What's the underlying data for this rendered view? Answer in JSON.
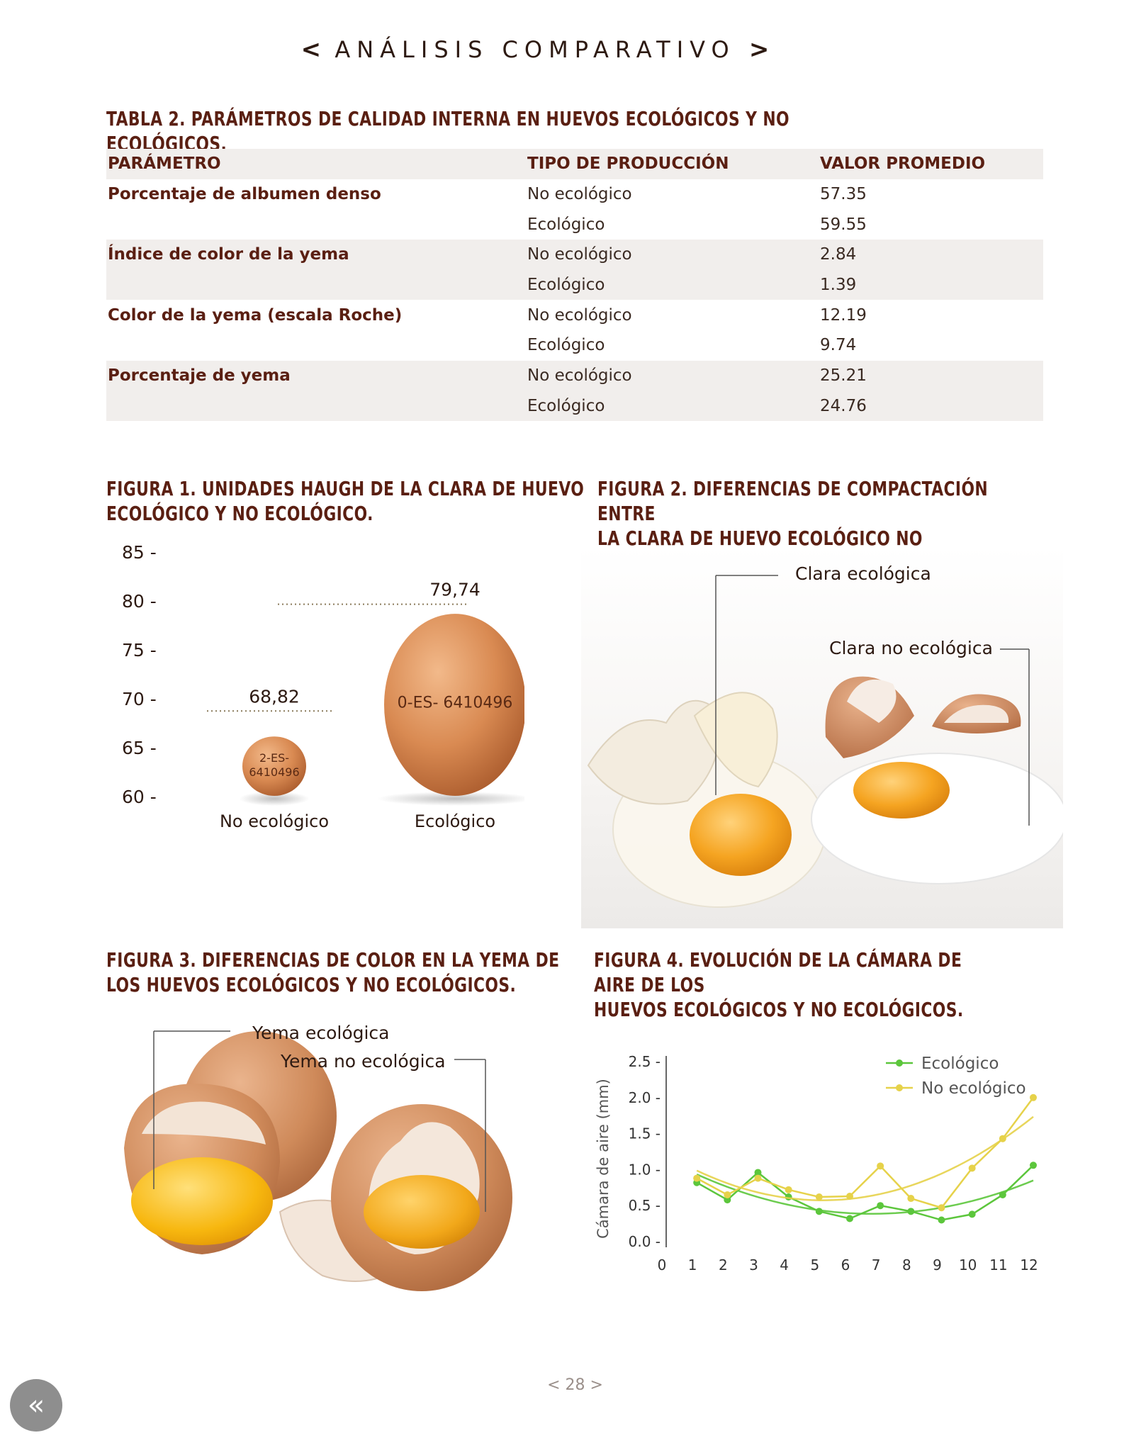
{
  "header": {
    "left_chevron": "<",
    "title": "ANÁLISIS COMPARATIVO",
    "right_chevron": ">"
  },
  "table2": {
    "title": "TABLA 2. PARÁMETROS DE CALIDAD INTERNA EN HUEVOS ECOLÓGICOS Y NO ECOLÓGICOS.",
    "headers": [
      "PARÁMETRO",
      "TIPO DE PRODUCCIÓN",
      "VALOR PROMEDIO"
    ],
    "rows": [
      {
        "param": "Porcentaje de albumen denso",
        "type": "No ecológico",
        "value": "57.35"
      },
      {
        "param": "",
        "type": "Ecológico",
        "value": "59.55"
      },
      {
        "param": "Índice de color de la yema",
        "type": "No ecológico",
        "value": "2.84"
      },
      {
        "param": "",
        "type": "Ecológico",
        "value": "1.39"
      },
      {
        "param": "Color de la yema (escala Roche)",
        "type": "No ecológico",
        "value": "12.19"
      },
      {
        "param": "",
        "type": "Ecológico",
        "value": "9.74"
      },
      {
        "param": "Porcentaje de yema",
        "type": "No ecológico",
        "value": "25.21"
      },
      {
        "param": "",
        "type": "Ecológico",
        "value": "24.76"
      }
    ]
  },
  "fig1": {
    "title_line1": "FIGURA 1. UNIDADES HAUGH DE LA CLARA DE HUEVO",
    "title_line2": "ECOLÓGICO Y NO ECOLÓGICO.",
    "egg_code_small": "2-ES-\n6410496",
    "egg_code_large": "0-ES- 6410496"
  },
  "fig2": {
    "title_line1": "FIGURA 2. DIFERENCIAS DE COMPACTACIÓN ENTRE",
    "title_line2": "LA CLARA DE HUEVO ECOLÓGICO NO ECOLÓGICO.",
    "label_eco": "Clara ecológica",
    "label_noeco": "Clara no ecológica"
  },
  "fig3": {
    "title_line1": "FIGURA 3. DIFERENCIAS DE COLOR EN LA YEMA DE",
    "title_line2": "LOS HUEVOS ECOLÓGICOS Y NO ECOLÓGICOS.",
    "label_eco": "Yema ecológica",
    "label_noeco": "Yema no ecológica"
  },
  "fig4": {
    "title_line1": "FIGURA 4. EVOLUCIÓN DE LA CÁMARA DE AIRE DE LOS",
    "title_line2": "HUEVOS ECOLÓGICOS Y NO ECOLÓGICOS."
  },
  "chart_data": [
    {
      "type": "bar",
      "categories": [
        "No ecológico",
        "Ecológico"
      ],
      "values": [
        68.82,
        79.74
      ],
      "value_labels": [
        "68,82",
        "79,74"
      ],
      "yticks": [
        "85 -",
        "80 -",
        "75 -",
        "70 -",
        "65 -",
        "60 -"
      ],
      "ylim": [
        60,
        85
      ],
      "mark": "egg"
    },
    {
      "type": "line",
      "x": [
        1,
        2,
        3,
        4,
        5,
        6,
        7,
        8,
        9,
        10,
        11,
        12
      ],
      "xticks": [
        "0",
        "1",
        "2",
        "3",
        "4",
        "5",
        "6",
        "7",
        "8",
        "9",
        "10",
        "11",
        "12"
      ],
      "yticks": [
        "2.5 -",
        "2.0 -",
        "1.5 -",
        "1.0 -",
        "0.5 -",
        "0.0 -"
      ],
      "xlim": [
        0,
        12
      ],
      "ylim": [
        0,
        2.5
      ],
      "ylabel": "Cámara de aire (mm)",
      "legend_position": "top-right",
      "series": [
        {
          "name": "Ecológico",
          "color": "#5cc63c",
          "values": [
            0.82,
            0.58,
            0.96,
            0.62,
            0.42,
            0.32,
            0.5,
            0.42,
            0.3,
            0.38,
            0.65,
            1.06
          ],
          "trend": "quadratic"
        },
        {
          "name": "No ecológico",
          "color": "#e6d24a",
          "values": [
            0.88,
            0.65,
            0.88,
            0.72,
            0.62,
            0.63,
            1.05,
            0.6,
            0.47,
            1.02,
            1.43,
            2.0
          ],
          "trend": "quadratic"
        }
      ]
    }
  ],
  "footer": {
    "page_number": "28",
    "left_chevron": "<",
    "right_chevron": ">"
  },
  "nav": {
    "back_icon": "«"
  }
}
